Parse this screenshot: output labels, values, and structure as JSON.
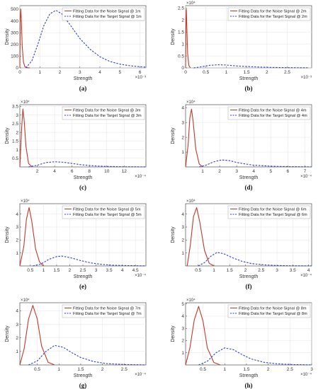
{
  "chart_data": [
    {
      "type": "line",
      "panel_label": "(a)",
      "ylabel": "Density",
      "xlabel": "Strength",
      "y_exponent": "",
      "x_exponent": "×10⁻³",
      "xlim": [
        0,
        6.3
      ],
      "ylim": [
        0,
        530
      ],
      "xticks": [
        0,
        1,
        2,
        3,
        4,
        5,
        6
      ],
      "xticklabels": [
        "0",
        "1",
        "2",
        "3",
        "4",
        "5",
        "6"
      ],
      "yticks": [
        0,
        100,
        200,
        300,
        400,
        500
      ],
      "yticklabels": [
        "0",
        "100",
        "200",
        "300",
        "400",
        "500"
      ],
      "series": [
        {
          "name": "Fitting Data for the Noise Signal @ 1m",
          "style": "solid",
          "color": "#c0392b",
          "x": [
            0,
            0.02,
            0.05,
            0.08,
            0.12,
            0.18,
            0.25,
            0.35,
            0.5
          ],
          "y": [
            0,
            420,
            500,
            380,
            180,
            50,
            10,
            2,
            0
          ]
        },
        {
          "name": "Fitting Data for the Target Signal @ 1m",
          "style": "dashed",
          "color": "#2c3fd6",
          "x": [
            0.3,
            0.6,
            0.9,
            1.2,
            1.5,
            1.8,
            2.1,
            2.5,
            3.0,
            3.5,
            4.0,
            4.5,
            5.0,
            5.5,
            6.0,
            6.3
          ],
          "y": [
            0,
            60,
            200,
            360,
            460,
            490,
            460,
            370,
            250,
            160,
            95,
            55,
            32,
            18,
            10,
            6
          ]
        }
      ]
    },
    {
      "type": "line",
      "panel_label": "(b)",
      "ylabel": "Density",
      "xlabel": "Strength",
      "y_exponent": "×10⁴",
      "x_exponent": "×10⁻³",
      "xlim": [
        0,
        3.1
      ],
      "ylim": [
        0,
        2.6
      ],
      "xticks": [
        0,
        0.5,
        1,
        1.5,
        2,
        2.5
      ],
      "xticklabels": [
        "0",
        "0.5",
        "1",
        "1.5",
        "2",
        "2.5"
      ],
      "yticks": [
        0,
        0.5,
        1,
        1.5,
        2,
        2.5
      ],
      "yticklabels": [
        "0",
        "0.5",
        "1",
        "1.5",
        "2",
        "2.5"
      ],
      "series": [
        {
          "name": "Fitting Data for the Noise Signal @ 2m",
          "style": "solid",
          "color": "#c0392b",
          "x": [
            0,
            0.01,
            0.02,
            0.03,
            0.05,
            0.08,
            0.12
          ],
          "y": [
            0,
            2.0,
            2.45,
            1.8,
            0.6,
            0.1,
            0
          ]
        },
        {
          "name": "Fitting Data for the Target Signal @ 2m",
          "style": "dashed",
          "color": "#2c3fd6",
          "x": [
            0.2,
            0.4,
            0.6,
            0.8,
            1.0,
            1.2,
            1.5,
            1.8,
            2.1,
            2.5,
            3.0
          ],
          "y": [
            0,
            0.05,
            0.11,
            0.13,
            0.12,
            0.09,
            0.06,
            0.035,
            0.02,
            0.01,
            0.005
          ]
        }
      ]
    },
    {
      "type": "line",
      "panel_label": "(c)",
      "ylabel": "Density",
      "xlabel": "Strength",
      "y_exponent": "×10⁴",
      "x_exponent": "×10⁻⁴",
      "xlim": [
        0,
        14.5
      ],
      "ylim": [
        0,
        3.6
      ],
      "xticks": [
        2,
        4,
        6,
        8,
        10,
        12
      ],
      "xticklabels": [
        "2",
        "4",
        "6",
        "8",
        "10",
        "12"
      ],
      "yticks": [
        0.5,
        1,
        1.5,
        2,
        2.5,
        3,
        3.5
      ],
      "yticklabels": [
        "0.5",
        "1",
        "1.5",
        "2",
        "2.5",
        "3",
        "3.5"
      ],
      "series": [
        {
          "name": "Fitting Data for the Noise Signal @ 3m",
          "style": "solid",
          "color": "#c0392b",
          "x": [
            0,
            0.2,
            0.35,
            0.5,
            0.7,
            1.0,
            1.4
          ],
          "y": [
            0,
            2.2,
            3.35,
            2.7,
            1.2,
            0.2,
            0
          ]
        },
        {
          "name": "Fitting Data for the Target Signal @ 3m",
          "style": "dashed",
          "color": "#2c3fd6",
          "x": [
            1,
            2,
            3,
            4,
            5,
            6,
            7,
            8,
            9,
            10,
            12,
            14.5
          ],
          "y": [
            0,
            0.1,
            0.25,
            0.3,
            0.27,
            0.2,
            0.13,
            0.08,
            0.05,
            0.03,
            0.01,
            0.004
          ]
        }
      ]
    },
    {
      "type": "line",
      "panel_label": "(d)",
      "ylabel": "Density",
      "xlabel": "Strength",
      "y_exponent": "×10⁴",
      "x_exponent": "×10⁻⁴",
      "xlim": [
        0,
        7.4
      ],
      "ylim": [
        0,
        4.2
      ],
      "xticks": [
        1,
        2,
        3,
        4,
        5,
        6,
        7
      ],
      "xticklabels": [
        "1",
        "2",
        "3",
        "4",
        "5",
        "6",
        "7"
      ],
      "yticks": [
        1,
        2,
        3,
        4
      ],
      "yticklabels": [
        "1",
        "2",
        "3",
        "4"
      ],
      "series": [
        {
          "name": "Fitting Data for the Noise Signal @ 4m",
          "style": "solid",
          "color": "#c0392b",
          "x": [
            0,
            0.15,
            0.25,
            0.35,
            0.45,
            0.6,
            0.8,
            1.0
          ],
          "y": [
            0,
            1.5,
            3.3,
            3.9,
            3.0,
            1.2,
            0.2,
            0
          ]
        },
        {
          "name": "Fitting Data for the Target Signal @ 4m",
          "style": "dashed",
          "color": "#2c3fd6",
          "x": [
            0.8,
            1.2,
            1.6,
            2.0,
            2.2,
            2.6,
            3.0,
            3.5,
            4.0,
            5.0,
            6.0,
            7.4
          ],
          "y": [
            0,
            0.12,
            0.32,
            0.45,
            0.47,
            0.42,
            0.3,
            0.2,
            0.12,
            0.05,
            0.02,
            0.005
          ]
        }
      ]
    },
    {
      "type": "line",
      "panel_label": "(e)",
      "ylabel": "Density",
      "xlabel": "Strength",
      "y_exponent": "×10⁴",
      "x_exponent": "×10⁻⁴",
      "xlim": [
        0.1,
        4.9
      ],
      "ylim": [
        0,
        4.8
      ],
      "xticks": [
        0.5,
        1,
        1.5,
        2,
        2.5,
        3,
        3.5,
        4,
        4.5
      ],
      "xticklabels": [
        "0.5",
        "1",
        "1.5",
        "2",
        "2.5",
        "3",
        "3.5",
        "4",
        "4.5"
      ],
      "yticks": [
        1,
        2,
        3,
        4
      ],
      "yticklabels": [
        "1",
        "2",
        "3",
        "4"
      ],
      "series": [
        {
          "name": "Fitting Data for the Noise Signal @ 5m",
          "style": "solid",
          "color": "#c0392b",
          "x": [
            0.1,
            0.25,
            0.35,
            0.45,
            0.55,
            0.7,
            0.85,
            1.0
          ],
          "y": [
            0,
            1.5,
            3.6,
            4.5,
            3.5,
            1.3,
            0.3,
            0
          ]
        },
        {
          "name": "Fitting Data for the Target Signal @ 5m",
          "style": "dashed",
          "color": "#2c3fd6",
          "x": [
            0.6,
            0.9,
            1.2,
            1.5,
            1.7,
            2.0,
            2.4,
            2.8,
            3.2,
            3.6,
            4.0,
            4.9
          ],
          "y": [
            0,
            0.15,
            0.5,
            0.72,
            0.76,
            0.65,
            0.42,
            0.24,
            0.12,
            0.06,
            0.03,
            0.005
          ]
        }
      ]
    },
    {
      "type": "line",
      "panel_label": "(f)",
      "ylabel": "Density",
      "xlabel": "Strength",
      "y_exponent": "×10⁴",
      "x_exponent": "×10⁻⁴",
      "xlim": [
        0.1,
        4.1
      ],
      "ylim": [
        0,
        4.8
      ],
      "xticks": [
        0.5,
        1,
        1.5,
        2,
        2.5,
        3,
        3.5,
        4
      ],
      "xticklabels": [
        "0.5",
        "1",
        "1.5",
        "2",
        "2.5",
        "3",
        "3.5",
        "4"
      ],
      "yticks": [
        1,
        2,
        3,
        4
      ],
      "yticklabels": [
        "1",
        "2",
        "3",
        "4"
      ],
      "series": [
        {
          "name": "Fitting Data for the Noise Signal @ 6m",
          "style": "solid",
          "color": "#c0392b",
          "x": [
            0.15,
            0.25,
            0.35,
            0.45,
            0.55,
            0.7,
            0.85,
            1.0
          ],
          "y": [
            0,
            1.6,
            3.8,
            4.5,
            3.4,
            1.2,
            0.2,
            0
          ]
        },
        {
          "name": "Fitting Data for the Target Signal @ 6m",
          "style": "dashed",
          "color": "#2c3fd6",
          "x": [
            0.5,
            0.7,
            0.9,
            1.1,
            1.3,
            1.6,
            1.9,
            2.2,
            2.6,
            3.0,
            3.5,
            4.1
          ],
          "y": [
            0,
            0.25,
            0.75,
            1.05,
            0.95,
            0.62,
            0.35,
            0.18,
            0.08,
            0.03,
            0.01,
            0.003
          ]
        }
      ]
    },
    {
      "type": "line",
      "panel_label": "(g)",
      "ylabel": "Density",
      "xlabel": "Strength",
      "y_exponent": "×10⁴",
      "x_exponent": "×10⁻⁴",
      "xlim": [
        0.1,
        3.0
      ],
      "ylim": [
        0,
        4.6
      ],
      "xticks": [
        0.5,
        1,
        1.5,
        2,
        2.5
      ],
      "xticklabels": [
        "0.5",
        "1",
        "1.5",
        "2",
        "2.5"
      ],
      "yticks": [
        1,
        2,
        3,
        4
      ],
      "yticklabels": [
        "1",
        "2",
        "3",
        "4"
      ],
      "series": [
        {
          "name": "Fitting Data for the Noise Signal @ 7m",
          "style": "solid",
          "color": "#c0392b",
          "x": [
            0.1,
            0.2,
            0.3,
            0.4,
            0.5,
            0.6,
            0.75,
            0.9
          ],
          "y": [
            0,
            1.2,
            3.4,
            4.4,
            3.4,
            1.4,
            0.2,
            0
          ]
        },
        {
          "name": "Fitting Data for the Target Signal @ 7m",
          "style": "dashed",
          "color": "#2c3fd6",
          "x": [
            0.3,
            0.5,
            0.7,
            0.9,
            1.1,
            1.3,
            1.5,
            1.8,
            2.1,
            2.5,
            3.0
          ],
          "y": [
            0,
            0.3,
            1.0,
            1.45,
            1.3,
            0.9,
            0.55,
            0.25,
            0.1,
            0.03,
            0.005
          ]
        }
      ]
    },
    {
      "type": "line",
      "panel_label": "(h)",
      "ylabel": "Density",
      "xlabel": "Strength",
      "y_exponent": "×10⁴",
      "x_exponent": "×10⁻⁴",
      "xlim": [
        0.1,
        3.0
      ],
      "ylim": [
        0,
        5.1
      ],
      "xticks": [
        0.5,
        1,
        1.5,
        2,
        2.5,
        3
      ],
      "xticklabels": [
        "0.5",
        "1",
        "1.5",
        "2",
        "2.5",
        "3"
      ],
      "yticks": [
        1,
        2,
        3,
        4,
        5
      ],
      "yticklabels": [
        "1",
        "2",
        "3",
        "4",
        "5"
      ],
      "series": [
        {
          "name": "Fitting Data for the Noise Signal @ 8m",
          "style": "solid",
          "color": "#c0392b",
          "x": [
            0.1,
            0.2,
            0.3,
            0.4,
            0.5,
            0.6,
            0.75,
            0.9
          ],
          "y": [
            0,
            1.4,
            3.7,
            4.8,
            3.6,
            1.4,
            0.2,
            0
          ]
        },
        {
          "name": "Fitting Data for the Target Signal @ 8m",
          "style": "dashed",
          "color": "#2c3fd6",
          "x": [
            0.4,
            0.6,
            0.8,
            1.0,
            1.2,
            1.4,
            1.6,
            1.9,
            2.2,
            2.6,
            3.0
          ],
          "y": [
            0,
            0.3,
            1.0,
            1.4,
            1.25,
            0.85,
            0.5,
            0.22,
            0.09,
            0.03,
            0.005
          ]
        }
      ]
    }
  ]
}
